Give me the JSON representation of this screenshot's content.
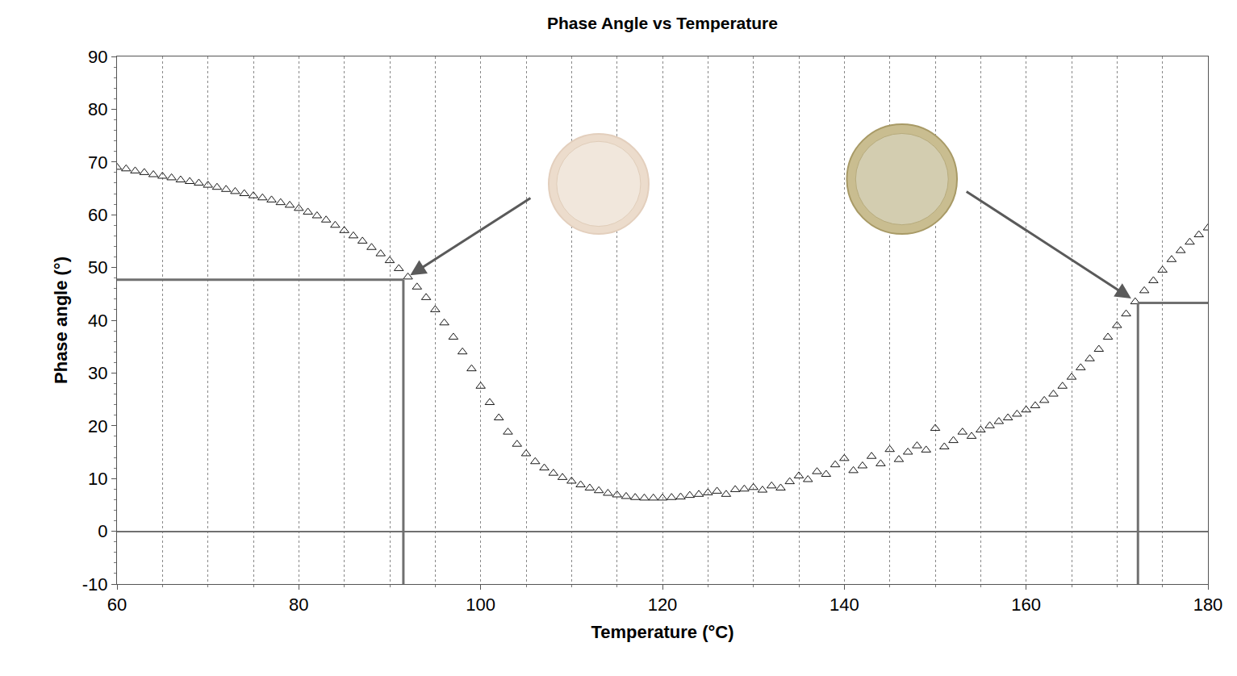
{
  "chart_data": {
    "type": "scatter",
    "title": "Phase Angle vs Temperature",
    "x_label": "Temperature (°C)",
    "y_label": "Phase angle (°)",
    "x": [
      60,
      61,
      62,
      63,
      64,
      65,
      66,
      67,
      68,
      69,
      70,
      71,
      72,
      73,
      74,
      75,
      76,
      77,
      78,
      79,
      80,
      81,
      82,
      83,
      84,
      85,
      86,
      87,
      88,
      89,
      90,
      91,
      92,
      93,
      94,
      95,
      96,
      97,
      98,
      99,
      100,
      101,
      102,
      103,
      104,
      105,
      106,
      107,
      108,
      109,
      110,
      111,
      112,
      113,
      114,
      115,
      116,
      117,
      118,
      119,
      120,
      121,
      122,
      123,
      124,
      125,
      126,
      127,
      128,
      129,
      130,
      131,
      132,
      133,
      134,
      135,
      136,
      137,
      138,
      139,
      140,
      141,
      142,
      143,
      144,
      145,
      146,
      147,
      148,
      149,
      150,
      151,
      152,
      153,
      154,
      155,
      156,
      157,
      158,
      159,
      160,
      161,
      162,
      163,
      164,
      165,
      166,
      167,
      168,
      169,
      170,
      171,
      172,
      173,
      174,
      175,
      176,
      177,
      178,
      179,
      180
    ],
    "values": [
      69.0,
      68.7,
      68.3,
      68.0,
      67.6,
      67.3,
      67.0,
      66.6,
      66.3,
      66.0,
      65.6,
      65.2,
      64.8,
      64.4,
      64.0,
      63.6,
      63.2,
      62.8,
      62.3,
      61.8,
      61.2,
      60.5,
      59.8,
      59.0,
      58.0,
      57.0,
      56.0,
      55.0,
      53.8,
      52.6,
      51.3,
      49.8,
      48.2,
      46.3,
      44.3,
      42.0,
      39.5,
      36.8,
      34.0,
      30.8,
      27.5,
      24.4,
      21.5,
      18.8,
      16.5,
      14.7,
      13.2,
      12.0,
      11.0,
      10.2,
      9.5,
      8.8,
      8.2,
      7.7,
      7.2,
      6.9,
      6.6,
      6.4,
      6.3,
      6.3,
      6.3,
      6.4,
      6.5,
      6.8,
      7.0,
      7.3,
      7.6,
      7.0,
      7.9,
      8.0,
      8.3,
      7.8,
      8.6,
      8.2,
      9.4,
      10.5,
      9.8,
      11.3,
      10.8,
      12.6,
      13.8,
      11.5,
      12.4,
      14.2,
      12.8,
      15.5,
      13.6,
      15.0,
      16.2,
      15.4,
      19.5,
      16.0,
      17.2,
      18.8,
      18.0,
      19.2,
      20.0,
      20.8,
      21.5,
      22.2,
      23.0,
      23.8,
      24.8,
      26.0,
      27.5,
      29.2,
      31.0,
      32.7,
      34.5,
      36.8,
      39.0,
      41.2,
      43.5,
      45.6,
      47.5,
      49.5,
      51.5,
      53.2,
      54.8,
      56.2,
      57.5
    ],
    "color": "#1a1a1a",
    "marker": "triangle-open",
    "xlim": [
      60,
      180
    ],
    "xticks": [
      60,
      80,
      100,
      120,
      140,
      160,
      180
    ],
    "ylim": [
      -10,
      90
    ],
    "yticks": [
      -10,
      0,
      10,
      20,
      30,
      40,
      50,
      60,
      70,
      80,
      90
    ],
    "grid": true,
    "reference_points": [
      {
        "x": 91.5,
        "y": 47.7
      },
      {
        "x": 172.3,
        "y": 43.3
      }
    ]
  }
}
